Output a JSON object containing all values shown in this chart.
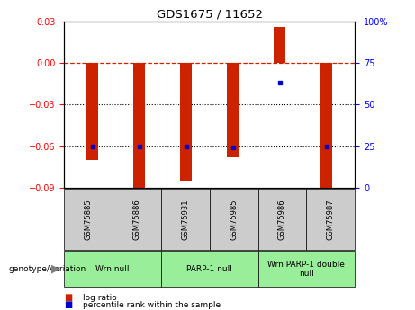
{
  "title": "GDS1675 / 11652",
  "samples": [
    "GSM75885",
    "GSM75886",
    "GSM75931",
    "GSM75985",
    "GSM75986",
    "GSM75987"
  ],
  "log_ratios": [
    -0.07,
    -0.092,
    -0.085,
    -0.068,
    0.026,
    -0.091
  ],
  "percentile_ranks": [
    25,
    25,
    25,
    24,
    63,
    25
  ],
  "ylim_left": [
    -0.09,
    0.03
  ],
  "ylim_right": [
    0,
    100
  ],
  "yticks_left": [
    -0.09,
    -0.06,
    -0.03,
    0,
    0.03
  ],
  "yticks_right": [
    0,
    25,
    50,
    75,
    100
  ],
  "hlines_dotted": [
    -0.03,
    -0.06
  ],
  "bar_color": "#CC2200",
  "dot_color": "#0000CC",
  "dashed_line_color": "#CC2200",
  "groups": [
    {
      "label": "Wrn null",
      "n": 2
    },
    {
      "label": "PARP-1 null",
      "n": 2
    },
    {
      "label": "Wrn PARP-1 double\nnull",
      "n": 2
    }
  ],
  "group_bg_color": "#99EE99",
  "sample_bg_color": "#CCCCCC",
  "bar_width": 0.25
}
